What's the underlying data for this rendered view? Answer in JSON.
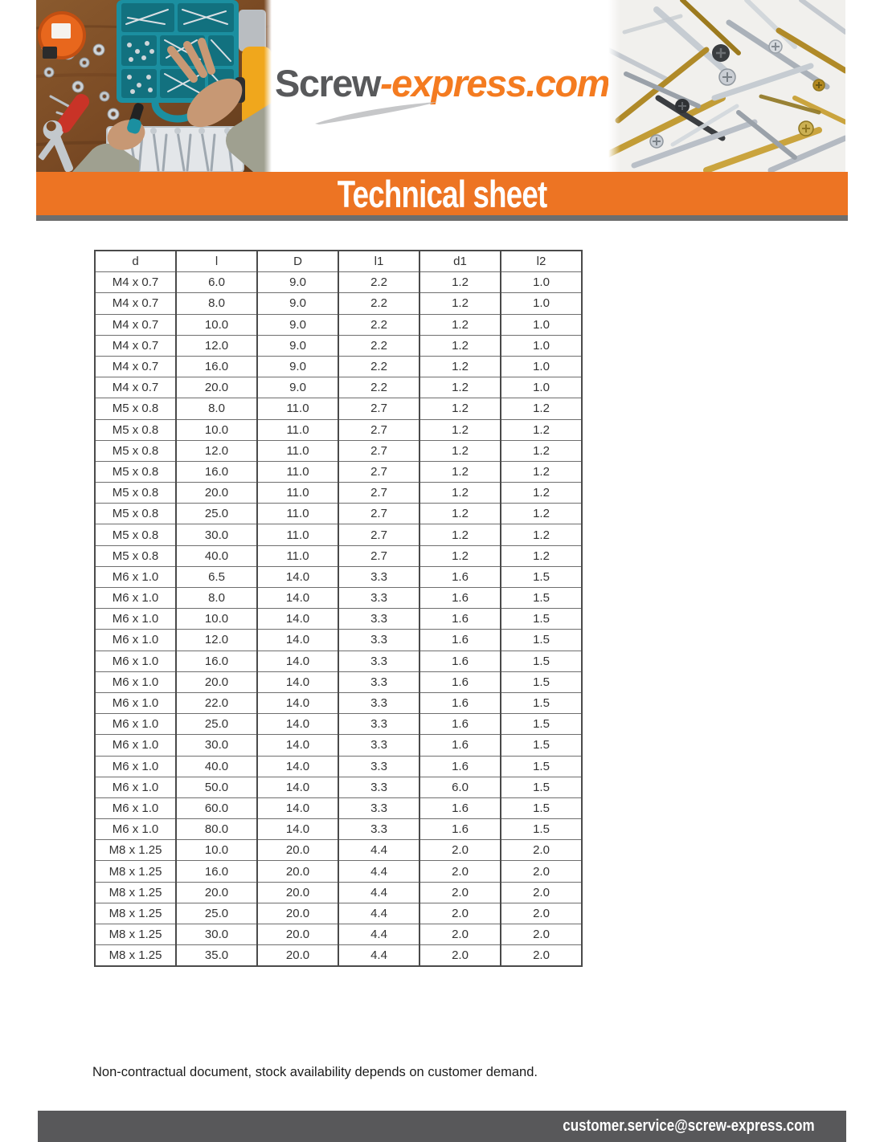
{
  "header": {
    "logo_part1": "Screw",
    "logo_part2": "-express.com",
    "banner_title": "Technical sheet"
  },
  "table": {
    "columns": [
      "d",
      "l",
      "D",
      "l1",
      "d1",
      "l2"
    ],
    "rows": [
      [
        "M4 x 0.7",
        "6.0",
        "9.0",
        "2.2",
        "1.2",
        "1.0"
      ],
      [
        "M4 x 0.7",
        "8.0",
        "9.0",
        "2.2",
        "1.2",
        "1.0"
      ],
      [
        "M4 x 0.7",
        "10.0",
        "9.0",
        "2.2",
        "1.2",
        "1.0"
      ],
      [
        "M4 x 0.7",
        "12.0",
        "9.0",
        "2.2",
        "1.2",
        "1.0"
      ],
      [
        "M4 x 0.7",
        "16.0",
        "9.0",
        "2.2",
        "1.2",
        "1.0"
      ],
      [
        "M4 x 0.7",
        "20.0",
        "9.0",
        "2.2",
        "1.2",
        "1.0"
      ],
      [
        "M5 x 0.8",
        "8.0",
        "11.0",
        "2.7",
        "1.2",
        "1.2"
      ],
      [
        "M5 x 0.8",
        "10.0",
        "11.0",
        "2.7",
        "1.2",
        "1.2"
      ],
      [
        "M5 x 0.8",
        "12.0",
        "11.0",
        "2.7",
        "1.2",
        "1.2"
      ],
      [
        "M5 x 0.8",
        "16.0",
        "11.0",
        "2.7",
        "1.2",
        "1.2"
      ],
      [
        "M5 x 0.8",
        "20.0",
        "11.0",
        "2.7",
        "1.2",
        "1.2"
      ],
      [
        "M5 x 0.8",
        "25.0",
        "11.0",
        "2.7",
        "1.2",
        "1.2"
      ],
      [
        "M5 x 0.8",
        "30.0",
        "11.0",
        "2.7",
        "1.2",
        "1.2"
      ],
      [
        "M5 x 0.8",
        "40.0",
        "11.0",
        "2.7",
        "1.2",
        "1.2"
      ],
      [
        "M6 x 1.0",
        "6.5",
        "14.0",
        "3.3",
        "1.6",
        "1.5"
      ],
      [
        "M6 x 1.0",
        "8.0",
        "14.0",
        "3.3",
        "1.6",
        "1.5"
      ],
      [
        "M6 x 1.0",
        "10.0",
        "14.0",
        "3.3",
        "1.6",
        "1.5"
      ],
      [
        "M6 x 1.0",
        "12.0",
        "14.0",
        "3.3",
        "1.6",
        "1.5"
      ],
      [
        "M6 x 1.0",
        "16.0",
        "14.0",
        "3.3",
        "1.6",
        "1.5"
      ],
      [
        "M6 x 1.0",
        "20.0",
        "14.0",
        "3.3",
        "1.6",
        "1.5"
      ],
      [
        "M6 x 1.0",
        "22.0",
        "14.0",
        "3.3",
        "1.6",
        "1.5"
      ],
      [
        "M6 x 1.0",
        "25.0",
        "14.0",
        "3.3",
        "1.6",
        "1.5"
      ],
      [
        "M6 x 1.0",
        "30.0",
        "14.0",
        "3.3",
        "1.6",
        "1.5"
      ],
      [
        "M6 x 1.0",
        "40.0",
        "14.0",
        "3.3",
        "1.6",
        "1.5"
      ],
      [
        "M6 x 1.0",
        "50.0",
        "14.0",
        "3.3",
        "6.0",
        "1.5"
      ],
      [
        "M6 x 1.0",
        "60.0",
        "14.0",
        "3.3",
        "1.6",
        "1.5"
      ],
      [
        "M6 x 1.0",
        "80.0",
        "14.0",
        "3.3",
        "1.6",
        "1.5"
      ],
      [
        "M8 x 1.25",
        "10.0",
        "20.0",
        "4.4",
        "2.0",
        "2.0"
      ],
      [
        "M8 x 1.25",
        "16.0",
        "20.0",
        "4.4",
        "2.0",
        "2.0"
      ],
      [
        "M8 x 1.25",
        "20.0",
        "20.0",
        "4.4",
        "2.0",
        "2.0"
      ],
      [
        "M8 x 1.25",
        "25.0",
        "20.0",
        "4.4",
        "2.0",
        "2.0"
      ],
      [
        "M8 x 1.25",
        "30.0",
        "20.0",
        "4.4",
        "2.0",
        "2.0"
      ],
      [
        "M8 x 1.25",
        "35.0",
        "20.0",
        "4.4",
        "2.0",
        "2.0"
      ]
    ]
  },
  "footer": {
    "note": "Non-contractual document, stock availability depends on customer demand.",
    "email": "customer.service@screw-express.com"
  },
  "colors": {
    "accent_orange": "#ED7423",
    "logo_gray": "#58595B",
    "logo_orange": "#F47B20",
    "divider_gray": "#6E6E6E",
    "footer_bar_gray": "#58585A"
  }
}
